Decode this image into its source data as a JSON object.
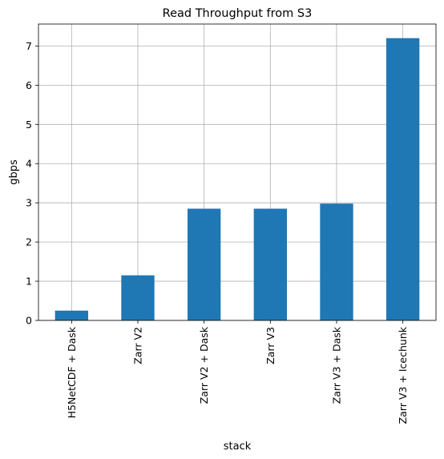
{
  "chart_data": {
    "type": "bar",
    "title": "Read Throughput from S3",
    "xlabel": "stack",
    "ylabel": "gbps",
    "categories": [
      "H5NetCDF + Dask",
      "Zarr V2",
      "Zarr V2 + Dask",
      "Zarr V3",
      "Zarr V3 + Dask",
      "Zarr V3 + Icechunk"
    ],
    "values": [
      0.25,
      1.15,
      2.85,
      2.85,
      2.98,
      7.2
    ],
    "yticks": [
      0,
      1,
      2,
      3,
      4,
      5,
      6,
      7
    ],
    "ylim": [
      0,
      7.56
    ],
    "grid": true,
    "bar_color": "#1f77b4",
    "grid_color": "#b0b0b0"
  }
}
